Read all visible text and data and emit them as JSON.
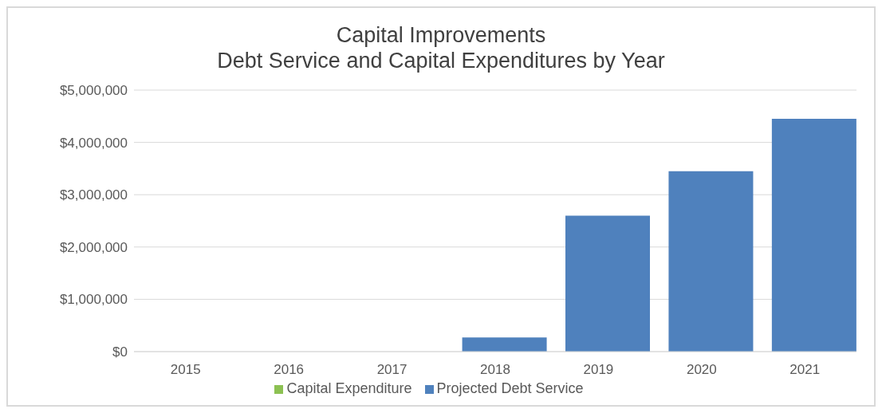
{
  "chart_data": {
    "type": "bar",
    "title": "Capital Improvements\nDebt Service and Capital Expenditures by Year",
    "categories": [
      "2015",
      "2016",
      "2017",
      "2018",
      "2019",
      "2020",
      "2021"
    ],
    "series": [
      {
        "name": "Projected Debt Service",
        "color": "#4f81bd",
        "values": [
          0,
          0,
          0,
          270000,
          2600000,
          3450000,
          4450000
        ]
      },
      {
        "name": "Capital Expenditure",
        "color": "#8cc152",
        "values": [
          0,
          0,
          0,
          0,
          0,
          0,
          0
        ]
      }
    ],
    "ylim": [
      0,
      5000000
    ],
    "yticks": [
      {
        "value": 0,
        "label": "$0"
      },
      {
        "value": 1000000,
        "label": "$1,000,000"
      },
      {
        "value": 2000000,
        "label": "$2,000,000"
      },
      {
        "value": 3000000,
        "label": "$3,000,000"
      },
      {
        "value": 4000000,
        "label": "$4,000,000"
      },
      {
        "value": 5000000,
        "label": "$5,000,000"
      }
    ],
    "grid": "y",
    "legend": "bottom"
  }
}
